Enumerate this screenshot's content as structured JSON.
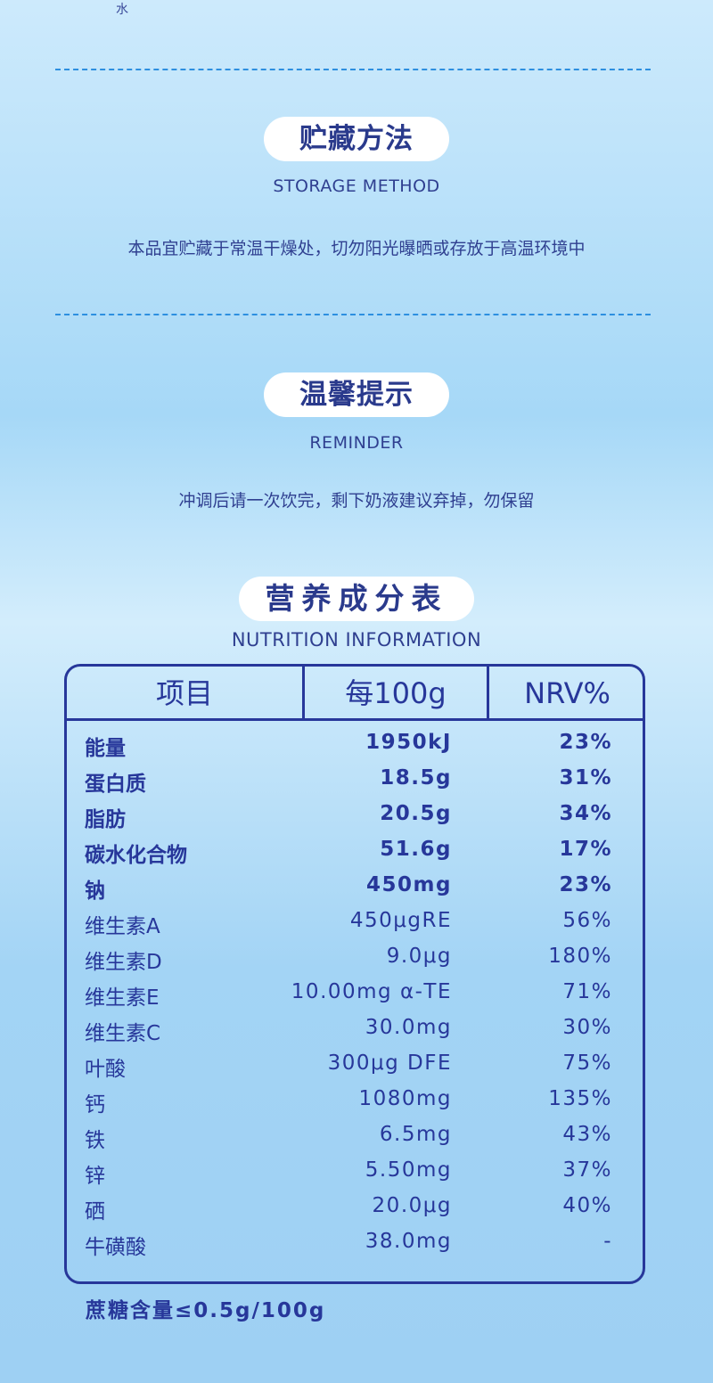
{
  "top_fragment": "水",
  "storage": {
    "title": "贮藏方法",
    "subtitle": "STORAGE METHOD",
    "text": "本品宜贮藏于常温干燥处，切勿阳光曝晒或存放于高温环境中"
  },
  "reminder": {
    "title": "温馨提示",
    "subtitle": "REMINDER",
    "text": "冲调后请一次饮完，剩下奶液建议弃掉，勿保留"
  },
  "nutrition": {
    "title": "营养成分表",
    "subtitle": "NUTRITION INFORMATION",
    "headers": [
      "项目",
      "每100g",
      "NRV%"
    ],
    "rows": [
      {
        "name": "能量",
        "value": "1950kJ",
        "nrv": "23%",
        "bold": true
      },
      {
        "name": "蛋白质",
        "value": "18.5g",
        "nrv": "31%",
        "bold": true
      },
      {
        "name": "脂肪",
        "value": "20.5g",
        "nrv": "34%",
        "bold": true
      },
      {
        "name": "碳水化合物",
        "value": "51.6g",
        "nrv": "17%",
        "bold": true
      },
      {
        "name": "钠",
        "value": "450mg",
        "nrv": "23%",
        "bold": true
      },
      {
        "name": "维生素A",
        "value": "450μgRE",
        "nrv": "56%",
        "bold": false
      },
      {
        "name": "维生素D",
        "value": "9.0μg",
        "nrv": "180%",
        "bold": false
      },
      {
        "name": "维生素E",
        "value": "10.00mg α-TE",
        "nrv": "71%",
        "bold": false
      },
      {
        "name": "维生素C",
        "value": "30.0mg",
        "nrv": "30%",
        "bold": false
      },
      {
        "name": "叶酸",
        "value": "300μg DFE",
        "nrv": "75%",
        "bold": false
      },
      {
        "name": "钙",
        "value": "1080mg",
        "nrv": "135%",
        "bold": false
      },
      {
        "name": "铁",
        "value": "6.5mg",
        "nrv": "43%",
        "bold": false
      },
      {
        "name": "锌",
        "value": "5.50mg",
        "nrv": "37%",
        "bold": false
      },
      {
        "name": "硒",
        "value": "20.0μg",
        "nrv": "40%",
        "bold": false
      },
      {
        "name": "牛磺酸",
        "value": "38.0mg",
        "nrv": "-",
        "bold": false
      }
    ],
    "footnote": "蔗糖含量≤0.5g/100g"
  },
  "colors": {
    "accent": "#27379a",
    "divider": "#2d8fe0",
    "background_top": "#cdeafc",
    "background_bottom": "#9ed0f3"
  }
}
